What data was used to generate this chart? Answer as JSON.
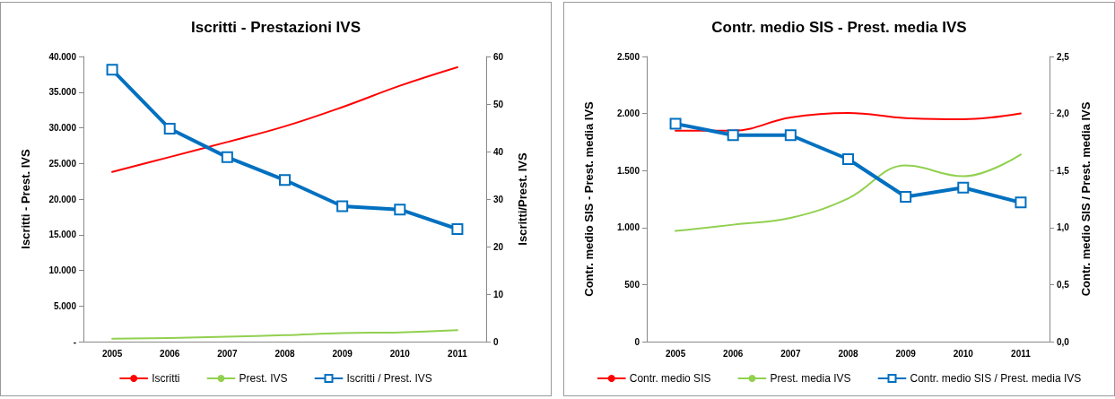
{
  "chart_data": [
    {
      "type": "line",
      "title": "Iscritti - Prestazioni IVS",
      "ylabel": "Iscritti - Prest. IVS",
      "y2label": "Iscritti/Prest. IVS",
      "categories": [
        "2005",
        "2006",
        "2007",
        "2008",
        "2009",
        "2010",
        "2011"
      ],
      "series": [
        {
          "name": "Iscritti",
          "color": "#ff0000",
          "marker": "none",
          "values": [
            23800,
            25900,
            28000,
            30200,
            32900,
            35900,
            38500
          ]
        },
        {
          "name": "Prest. IVS",
          "color": "#92d050",
          "marker": "none",
          "values": [
            400,
            500,
            700,
            900,
            1200,
            1300,
            1600
          ]
        },
        {
          "name": "Iscritti / Prest. IVS",
          "color": "#0070c0",
          "marker": "square",
          "axis": "y2",
          "values": [
            57.2,
            44.8,
            38.8,
            34.0,
            28.5,
            27.8,
            23.7
          ]
        }
      ],
      "ylim": [
        0,
        40000
      ],
      "yticks": [
        {
          "value": 0,
          "label": "-"
        },
        {
          "value": 5000,
          "label": "5.000"
        },
        {
          "value": 10000,
          "label": "10.000"
        },
        {
          "value": 15000,
          "label": "15.000"
        },
        {
          "value": 20000,
          "label": "20.000"
        },
        {
          "value": 25000,
          "label": "25.000"
        },
        {
          "value": 30000,
          "label": "30.000"
        },
        {
          "value": 35000,
          "label": "35.000"
        },
        {
          "value": 40000,
          "label": "40.000"
        }
      ],
      "y2lim": [
        0,
        60
      ],
      "y2ticks": [
        0,
        10,
        20,
        30,
        40,
        50,
        60
      ],
      "grid": false,
      "legend": "bottom"
    },
    {
      "type": "line",
      "title": "Contr. medio SIS - Prest. media IVS",
      "ylabel": "Contr. medio SIS - Prest. media IVS",
      "y2label": "Contr. medio SIS / Prest. media IVS",
      "categories": [
        "2005",
        "2006",
        "2007",
        "2008",
        "2009",
        "2010",
        "2011"
      ],
      "series": [
        {
          "name": "Contr. medio SIS",
          "color": "#ff0000",
          "marker": "none",
          "values": [
            1850,
            1850,
            1965,
            2005,
            1960,
            1950,
            2000
          ]
        },
        {
          "name": "Prest. media IVS",
          "color": "#92d050",
          "marker": "none",
          "values": [
            970,
            1025,
            1085,
            1255,
            1545,
            1450,
            1640
          ]
        },
        {
          "name": "Contr. medio SIS / Prest. media IVS",
          "color": "#0070c0",
          "marker": "square",
          "axis": "y2",
          "values": [
            1.91,
            1.81,
            1.81,
            1.6,
            1.27,
            1.35,
            1.22
          ]
        }
      ],
      "ylim": [
        0,
        2500
      ],
      "yticks": [
        0,
        500,
        {
          "value": 1000,
          "label": "1.000"
        },
        {
          "value": 1500,
          "label": "1.500"
        },
        {
          "value": 2000,
          "label": "2.000"
        },
        {
          "value": 2500,
          "label": "2.500"
        }
      ],
      "y2lim": [
        0,
        2.5
      ],
      "y2ticks": [
        {
          "value": 0,
          "label": "0,0"
        },
        {
          "value": 0.5,
          "label": "0,5"
        },
        {
          "value": 1,
          "label": "1,0"
        },
        {
          "value": 1.5,
          "label": "1,5"
        },
        {
          "value": 2,
          "label": "2,0"
        },
        {
          "value": 2.5,
          "label": "2,5"
        }
      ],
      "grid": false,
      "legend": "bottom"
    }
  ]
}
